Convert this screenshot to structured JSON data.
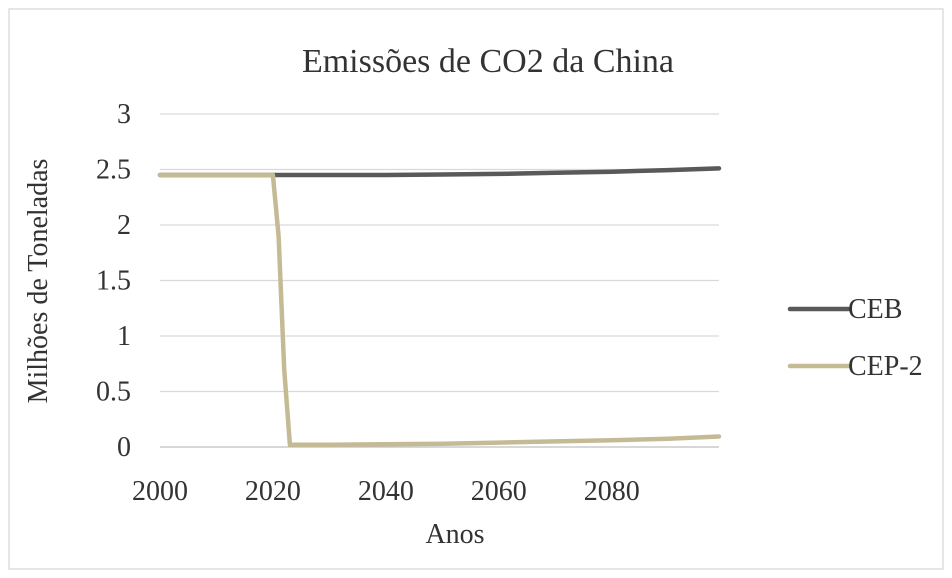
{
  "chart_data": {
    "type": "line",
    "title": "Emissões de CO2 da China",
    "xlabel": "Anos",
    "ylabel": "Milhões de Toneladas",
    "xlim": [
      2000,
      2099
    ],
    "ylim": [
      0,
      3
    ],
    "x_ticks": [
      "2000",
      "2020",
      "2040",
      "2060",
      "2080"
    ],
    "y_ticks": [
      "0",
      "0.5",
      "1",
      "1.5",
      "2",
      "2.5",
      "3"
    ],
    "grid": "horizontal",
    "legend_position": "right",
    "series": [
      {
        "name": "CEB",
        "color": "#595959",
        "points": [
          [
            2000,
            2.45
          ],
          [
            2010,
            2.45
          ],
          [
            2020,
            2.45
          ],
          [
            2030,
            2.45
          ],
          [
            2040,
            2.45
          ],
          [
            2050,
            2.455
          ],
          [
            2060,
            2.46
          ],
          [
            2070,
            2.47
          ],
          [
            2080,
            2.48
          ],
          [
            2090,
            2.495
          ],
          [
            2099,
            2.51
          ]
        ]
      },
      {
        "name": "CEP-2",
        "color": "#C4BB95",
        "points": [
          [
            2000,
            2.45
          ],
          [
            2010,
            2.45
          ],
          [
            2019,
            2.45
          ],
          [
            2020,
            2.45
          ],
          [
            2021,
            1.9
          ],
          [
            2022,
            0.7
          ],
          [
            2023,
            0.02
          ],
          [
            2030,
            0.02
          ],
          [
            2040,
            0.025
          ],
          [
            2050,
            0.03
          ],
          [
            2060,
            0.04
          ],
          [
            2070,
            0.05
          ],
          [
            2080,
            0.06
          ],
          [
            2090,
            0.075
          ],
          [
            2099,
            0.095
          ]
        ]
      }
    ]
  }
}
